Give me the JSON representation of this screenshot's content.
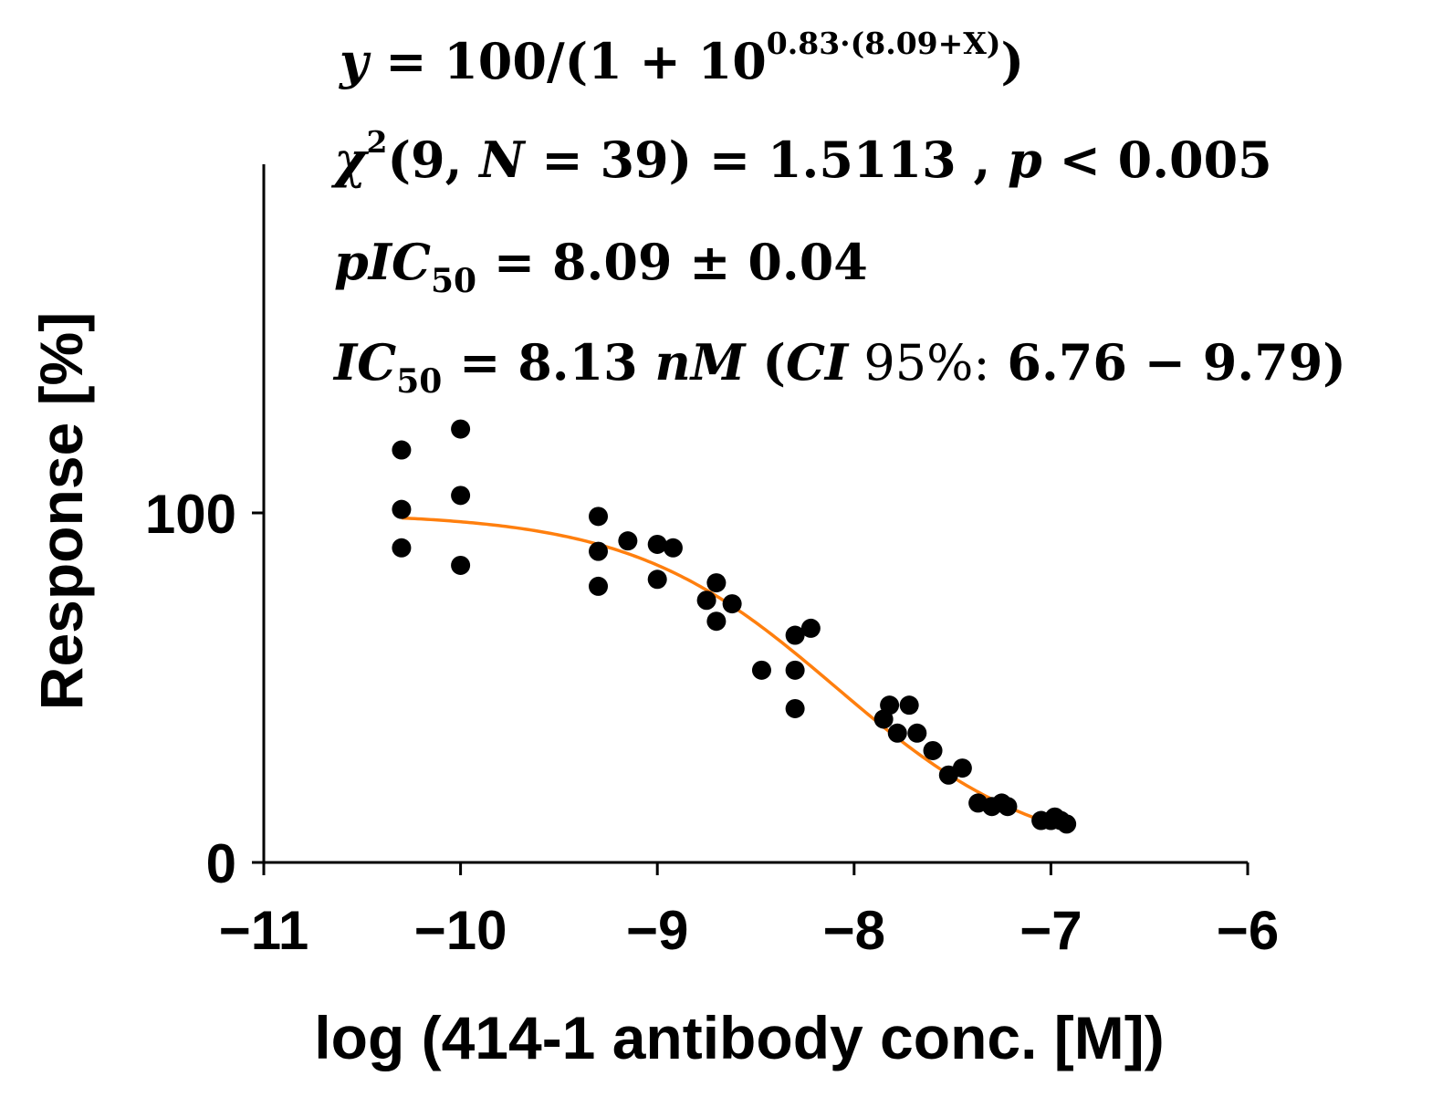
{
  "chart_data": {
    "type": "scatter",
    "title": "",
    "xlabel": "log (414-1 antibody conc. [M])",
    "ylabel": "Response [%]",
    "xlim": [
      -11,
      -6
    ],
    "ylim": [
      0,
      200
    ],
    "x_ticks": [
      -11,
      -10,
      -9,
      -8,
      -7,
      -6
    ],
    "x_tick_labels": [
      "−11",
      "−10",
      "−9",
      "−8",
      "−7",
      "−6"
    ],
    "y_ticks": [
      0,
      100
    ],
    "y_tick_labels": [
      "0",
      "100"
    ],
    "grid": false,
    "colors": {
      "points": "#000000",
      "fit": "#ff7f0e",
      "axis": "#000000"
    },
    "series": [
      {
        "name": "measured response",
        "kind": "scatter",
        "x": [
          -10.3,
          -10.3,
          -10.3,
          -10.0,
          -10.0,
          -10.0,
          -9.3,
          -9.3,
          -9.3,
          -9.15,
          -9.0,
          -9.0,
          -8.92,
          -8.75,
          -8.7,
          -8.7,
          -8.62,
          -8.47,
          -8.3,
          -8.3,
          -8.3,
          -8.22,
          -7.85,
          -7.82,
          -7.78,
          -7.72,
          -7.68,
          -7.6,
          -7.52,
          -7.45,
          -7.37,
          -7.3,
          -7.25,
          -7.22,
          -7.05,
          -7.0,
          -6.98,
          -6.95,
          -6.92
        ],
        "y": [
          118,
          101,
          90,
          124,
          105,
          85,
          99,
          89,
          79,
          92,
          91,
          81,
          90,
          75,
          80,
          69,
          74,
          55,
          65,
          55,
          44,
          67,
          41,
          45,
          37,
          45,
          37,
          32,
          25,
          27,
          17,
          16,
          17,
          16,
          12,
          12,
          13,
          12,
          11
        ]
      },
      {
        "name": "sigmoid fit",
        "kind": "line",
        "equation": {
          "amplitude": 100,
          "slope": 0.83,
          "pIC50": 8.09,
          "x_from": -10.3,
          "x_to": -7.0
        }
      }
    ],
    "annotations": {
      "equation": {
        "lhs": "y",
        "body": " = 100/(1 + 10",
        "exponent": "0.83·(8.09+X)",
        "close": ")"
      },
      "chi_square": {
        "symbol": "χ",
        "power": "2",
        "args": "(9, ",
        "n_label": "N",
        "n_rest": " = 39) = 1.5113 , ",
        "p_label": "p",
        "p_rest": " < 0.005"
      },
      "pic50": {
        "prefix": "pIC",
        "subscript": "50",
        "value": " = 8.09 ± 0.04"
      },
      "ic50": {
        "prefix": "IC",
        "subscript": "50",
        "value": " = 8.13 ",
        "unit": "nM",
        "ci_open": " (",
        "ci_label": "CI",
        "ci_level": " 95%:",
        "ci_range": " 6.76 − 9.79)"
      }
    }
  }
}
